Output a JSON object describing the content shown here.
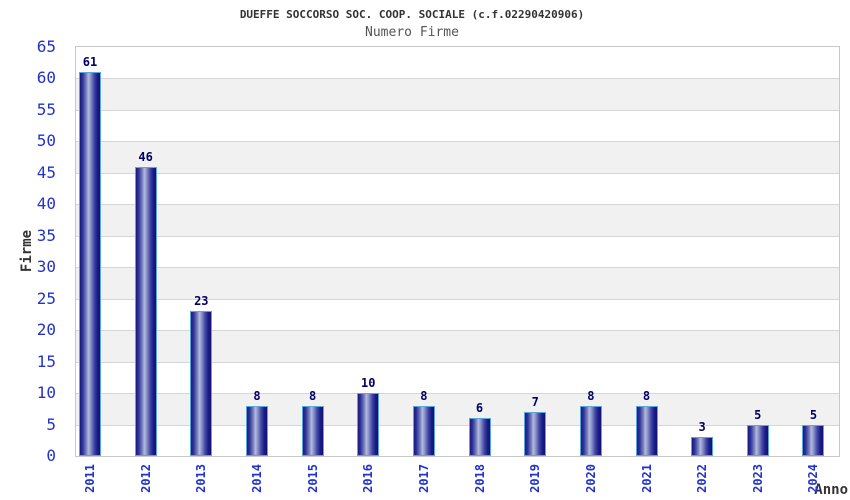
{
  "chart_data": {
    "type": "bar",
    "title": "DUEFFE SOCCORSO SOC. COOP. SOCIALE (c.f.02290420906)",
    "subtitle": "Numero Firme",
    "categories": [
      "2011",
      "2012",
      "2013",
      "2014",
      "2015",
      "2016",
      "2017",
      "2018",
      "2019",
      "2020",
      "2021",
      "2022",
      "2023",
      "2024"
    ],
    "values": [
      61,
      46,
      23,
      8,
      8,
      10,
      8,
      6,
      7,
      8,
      8,
      3,
      5,
      5
    ],
    "xlabel": "Anno",
    "ylabel": "Firme",
    "ylim": [
      0,
      65
    ],
    "ytick_step": 5,
    "yticks": [
      0,
      5,
      10,
      15,
      20,
      25,
      30,
      35,
      40,
      45,
      50,
      55,
      60,
      65
    ],
    "grid": true,
    "legend_position": "none",
    "colors": {
      "bar_dark": "#1a1a86",
      "bar_darkest": "#12126f",
      "bar_mid": "#7b84bd",
      "bar_light": "#b4bade",
      "bar_border": "#58a8de",
      "tick_label": "#2233cc",
      "value_label": "#000066",
      "band_gray": "#f1f1f1",
      "band_white": "#ffffff",
      "gridline": "#d6d6d6",
      "plot_border": "#c9c9c9",
      "title_color": "#333333",
      "subtitle_color": "#555555"
    }
  }
}
